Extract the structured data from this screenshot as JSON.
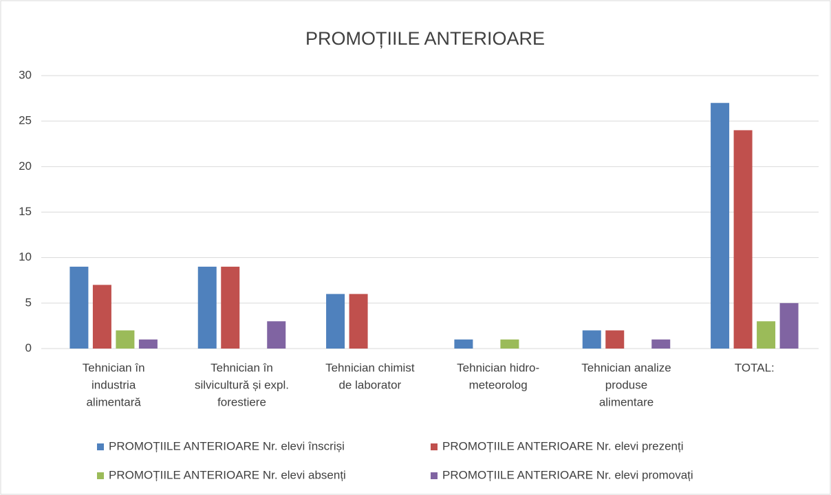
{
  "chart_data": {
    "type": "bar",
    "title": "PROMOȚIILE  ANTERIOARE",
    "categories": [
      [
        "Tehnician în",
        "industria",
        "alimentară"
      ],
      [
        "Tehnician în",
        "silvicultură și expl.",
        "forestiere"
      ],
      [
        "Tehnician chimist",
        "de laborator"
      ],
      [
        "Tehnician hidro-",
        "meteorolog"
      ],
      [
        "Tehnician analize",
        "produse",
        "alimentare"
      ],
      [
        "TOTAL:"
      ]
    ],
    "series": [
      {
        "name": "PROMOȚIILE  ANTERIOARE Nr. elevi înscriși",
        "color": "#4f81bd",
        "values": [
          9,
          9,
          6,
          1,
          2,
          27
        ]
      },
      {
        "name": "PROMOȚIILE  ANTERIOARE Nr. elevi prezenți",
        "color": "#c0504d",
        "values": [
          7,
          9,
          6,
          0,
          2,
          24
        ]
      },
      {
        "name": "PROMOȚIILE  ANTERIOARE Nr. elevi absenți",
        "color": "#9bbb59",
        "values": [
          2,
          0,
          0,
          1,
          0,
          3
        ]
      },
      {
        "name": "PROMOȚIILE  ANTERIOARE Nr. elevi promovați",
        "color": "#8064a2",
        "values": [
          1,
          3,
          0,
          0,
          1,
          5
        ]
      }
    ],
    "ylim": [
      0,
      30
    ],
    "yticks": [
      0,
      5,
      10,
      15,
      20,
      25,
      30
    ],
    "grid": true,
    "legend": "bottom"
  }
}
